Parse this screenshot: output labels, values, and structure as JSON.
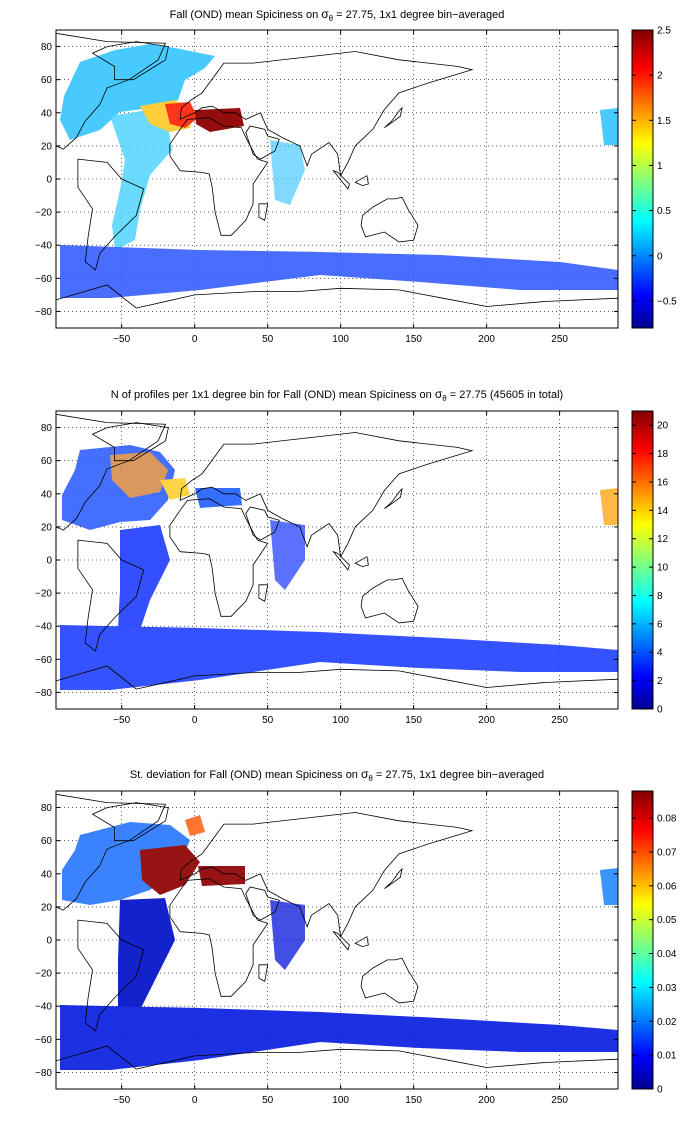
{
  "panels": [
    {
      "id": "mean",
      "title_main": "Fall (OND) mean Spiciness on ",
      "title_sigma": "σ",
      "title_sub": "θ",
      "title_rest": " = 27.75, 1x1 degree bin−averaged",
      "x_ticks": [
        "−50",
        "0",
        "50",
        "100",
        "150",
        "200",
        "250"
      ],
      "y_ticks": [
        "80",
        "60",
        "40",
        "20",
        "0",
        "−20",
        "−40",
        "−60",
        "−80"
      ],
      "colorbar": {
        "min": -0.8,
        "max": 2.5,
        "ticks": [
          "2.5",
          "2",
          "1.5",
          "1",
          "0.5",
          "0",
          "−0.5"
        ]
      }
    },
    {
      "id": "count",
      "title_main": "N of profiles per 1x1 degree bin for Fall (OND) mean Spiciness on ",
      "title_sigma": "σ",
      "title_sub": "θ",
      "title_rest": " = 27.75 (45605 in total)",
      "x_ticks": [
        "−50",
        "0",
        "50",
        "100",
        "150",
        "200",
        "250"
      ],
      "y_ticks": [
        "80",
        "60",
        "40",
        "20",
        "0",
        "−20",
        "−40",
        "−60",
        "−80"
      ],
      "colorbar": {
        "min": 0,
        "max": 21,
        "ticks": [
          "20",
          "18",
          "16",
          "14",
          "12",
          "10",
          "8",
          "6",
          "4",
          "2",
          "0"
        ]
      }
    },
    {
      "id": "std",
      "title_main": "St. deviation for Fall (OND) mean Spiciness on ",
      "title_sigma": "σ",
      "title_sub": "θ",
      "title_rest": " = 27.75, 1x1 degree bin−averaged",
      "x_ticks": [
        "−50",
        "0",
        "50",
        "100",
        "150",
        "200",
        "250"
      ],
      "y_ticks": [
        "80",
        "60",
        "40",
        "20",
        "0",
        "−20",
        "−40",
        "−60",
        "−80"
      ],
      "colorbar": {
        "min": 0,
        "max": 0.088,
        "ticks": [
          "0.08",
          "0.07",
          "0.06",
          "0.05",
          "0.04",
          "0.03",
          "0.02",
          "0.01",
          "0"
        ]
      }
    }
  ],
  "map": {
    "lon_range": [
      -95,
      290
    ],
    "lat_range": [
      -90,
      90
    ],
    "grid": "dotted",
    "colormap": "jet"
  }
}
